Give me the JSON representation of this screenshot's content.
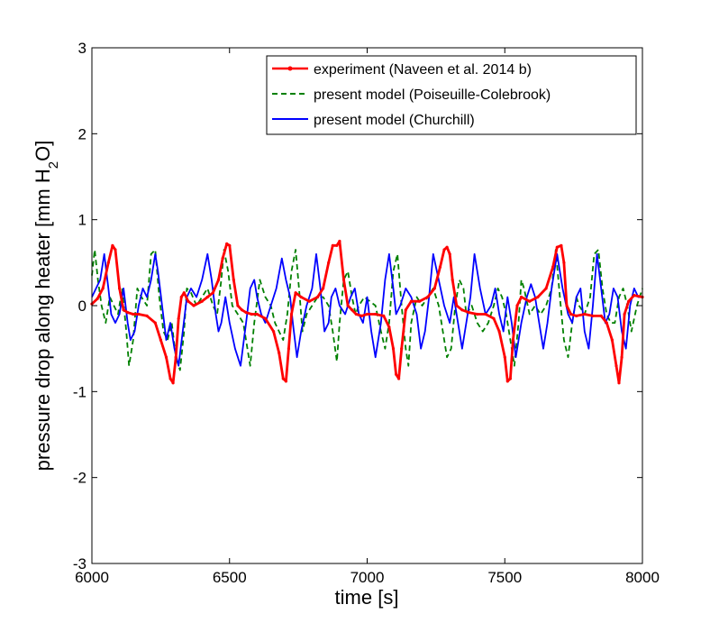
{
  "chart_data": {
    "type": "line",
    "xlabel": "time [s]",
    "ylabel_parts": [
      "pressure drop along heater [mm H",
      "2",
      "O]"
    ],
    "xlim": [
      6000,
      8000
    ],
    "ylim": [
      -3,
      3
    ],
    "xticks": [
      6000,
      6500,
      7000,
      7500,
      8000
    ],
    "yticks": [
      -3,
      -2,
      -1,
      0,
      1,
      2,
      3
    ],
    "grid": false,
    "legend_position": "top-right",
    "series": [
      {
        "name": "experiment (Naveen et al. 2014 b)",
        "color": "#ff0000",
        "style": "solid-dots",
        "x": [
          6000,
          6020,
          6040,
          6060,
          6075,
          6085,
          6100,
          6115,
          6130,
          6150,
          6170,
          6200,
          6230,
          6250,
          6270,
          6285,
          6295,
          6305,
          6315,
          6325,
          6335,
          6350,
          6370,
          6400,
          6420,
          6440,
          6460,
          6475,
          6490,
          6500,
          6515,
          6530,
          6545,
          6560,
          6580,
          6600,
          6630,
          6660,
          6680,
          6695,
          6705,
          6715,
          6725,
          6740,
          6760,
          6790,
          6820,
          6840,
          6860,
          6875,
          6890,
          6900,
          6915,
          6930,
          6945,
          6960,
          6980,
          7000,
          7030,
          7060,
          7080,
          7095,
          7105,
          7115,
          7125,
          7140,
          7160,
          7190,
          7220,
          7245,
          7265,
          7280,
          7290,
          7300,
          7310,
          7325,
          7345,
          7370,
          7400,
          7430,
          7460,
          7480,
          7500,
          7510,
          7520,
          7530,
          7545,
          7560,
          7590,
          7620,
          7650,
          7675,
          7690,
          7705,
          7715,
          7725,
          7740,
          7760,
          7790,
          7820,
          7850,
          7870,
          7890,
          7905,
          7915,
          7925,
          7935,
          7950,
          7970,
          8000
        ],
        "values": [
          0.02,
          0.08,
          0.2,
          0.5,
          0.7,
          0.65,
          0.2,
          -0.05,
          -0.08,
          -0.1,
          -0.1,
          -0.12,
          -0.2,
          -0.4,
          -0.6,
          -0.85,
          -0.9,
          -0.6,
          -0.15,
          0.1,
          0.15,
          0.05,
          0.0,
          0.05,
          0.1,
          0.15,
          0.3,
          0.55,
          0.72,
          0.7,
          0.3,
          0.0,
          -0.05,
          -0.08,
          -0.1,
          -0.1,
          -0.15,
          -0.3,
          -0.55,
          -0.85,
          -0.88,
          -0.5,
          -0.1,
          0.15,
          0.1,
          0.05,
          0.1,
          0.2,
          0.5,
          0.7,
          0.7,
          0.75,
          0.3,
          0.0,
          -0.05,
          -0.1,
          -0.12,
          -0.1,
          -0.1,
          -0.12,
          -0.25,
          -0.5,
          -0.8,
          -0.85,
          -0.5,
          -0.05,
          0.05,
          0.05,
          0.1,
          0.2,
          0.45,
          0.65,
          0.68,
          0.6,
          0.3,
          0.0,
          -0.05,
          -0.08,
          -0.1,
          -0.1,
          -0.15,
          -0.3,
          -0.6,
          -0.88,
          -0.85,
          -0.4,
          0.0,
          0.1,
          0.05,
          0.1,
          0.2,
          0.45,
          0.68,
          0.7,
          0.5,
          0.0,
          -0.1,
          -0.12,
          -0.1,
          -0.12,
          -0.12,
          -0.2,
          -0.4,
          -0.7,
          -0.9,
          -0.6,
          -0.1,
          0.05,
          0.12,
          0.1
        ]
      },
      {
        "name": "present model (Poiseuille-Colebrook)",
        "color": "#008000",
        "style": "dashed",
        "x": [
          6000,
          6010,
          6022,
          6035,
          6050,
          6065,
          6080,
          6095,
          6110,
          6125,
          6135,
          6150,
          6165,
          6180,
          6200,
          6215,
          6230,
          6245,
          6260,
          6275,
          6290,
          6305,
          6320,
          6335,
          6345,
          6360,
          6380,
          6400,
          6420,
          6440,
          6455,
          6470,
          6480,
          6495,
          6510,
          6530,
          6550,
          6565,
          6575,
          6590,
          6610,
          6630,
          6650,
          6665,
          6680,
          6695,
          6710,
          6725,
          6740,
          6755,
          6765,
          6780,
          6800,
          6820,
          6840,
          6860,
          6875,
          6890,
          6900,
          6915,
          6930,
          6945,
          6958,
          6970,
          6990,
          7010,
          7030,
          7050,
          7065,
          7080,
          7095,
          7110,
          7125,
          7140,
          7150,
          7160,
          7180,
          7200,
          7220,
          7240,
          7260,
          7275,
          7290,
          7305,
          7320,
          7335,
          7350,
          7360,
          7380,
          7400,
          7420,
          7440,
          7460,
          7475,
          7490,
          7505,
          7520,
          7535,
          7550,
          7560,
          7570,
          7590,
          7610,
          7630,
          7650,
          7670,
          7685,
          7700,
          7715,
          7730,
          7745,
          7760,
          7770,
          7790,
          7810,
          7825,
          7840,
          7855,
          7870,
          7885,
          7900,
          7915,
          7930,
          7945,
          7960,
          7980,
          8000
        ],
        "values": [
          0.35,
          0.65,
          0.3,
          0.0,
          -0.2,
          0.1,
          0.0,
          -0.1,
          0.2,
          -0.3,
          -0.7,
          -0.4,
          0.2,
          0.1,
          0.0,
          0.6,
          0.65,
          0.1,
          -0.3,
          -0.4,
          -0.2,
          -0.6,
          -0.75,
          -0.3,
          0.2,
          0.15,
          0.0,
          0.1,
          0.2,
          0.0,
          -0.1,
          0.3,
          0.65,
          0.4,
          0.0,
          -0.1,
          -0.2,
          -0.5,
          -0.7,
          -0.2,
          0.3,
          0.1,
          0.0,
          -0.2,
          -0.3,
          -0.4,
          -0.1,
          0.4,
          0.65,
          0.1,
          -0.3,
          -0.1,
          0.0,
          0.1,
          0.1,
          0.0,
          -0.3,
          -0.65,
          -0.2,
          0.3,
          0.4,
          0.1,
          -0.1,
          0.0,
          0.1,
          0.05,
          0.0,
          -0.3,
          -0.5,
          -0.2,
          0.4,
          0.6,
          0.0,
          -0.5,
          -0.7,
          -0.2,
          0.1,
          0.0,
          0.1,
          0.2,
          0.0,
          -0.3,
          -0.6,
          -0.5,
          0.0,
          0.3,
          0.2,
          -0.1,
          0.0,
          -0.2,
          -0.3,
          -0.2,
          0.0,
          0.2,
          0.1,
          -0.1,
          -0.4,
          -0.7,
          -0.2,
          0.3,
          0.2,
          -0.1,
          0.0,
          -0.1,
          0.0,
          0.2,
          0.65,
          0.1,
          -0.4,
          -0.6,
          -0.2,
          0.1,
          0.0,
          -0.1,
          0.1,
          0.6,
          0.65,
          0.2,
          -0.1,
          -0.2,
          -0.2,
          0.1,
          0.2,
          0.0,
          -0.3,
          0.0,
          0.2
        ]
      },
      {
        "name": "present model (Churchill)",
        "color": "#0000ff",
        "style": "solid",
        "x": [
          6000,
          6015,
          6030,
          6045,
          6060,
          6070,
          6085,
          6100,
          6115,
          6130,
          6140,
          6155,
          6170,
          6185,
          6200,
          6215,
          6230,
          6240,
          6255,
          6270,
          6285,
          6300,
          6315,
          6330,
          6345,
          6360,
          6380,
          6400,
          6420,
          6435,
          6450,
          6460,
          6470,
          6485,
          6500,
          6520,
          6540,
          6560,
          6575,
          6590,
          6600,
          6615,
          6630,
          6650,
          6670,
          6690,
          6705,
          6720,
          6730,
          6745,
          6760,
          6780,
          6800,
          6815,
          6830,
          6845,
          6860,
          6870,
          6885,
          6900,
          6920,
          6940,
          6955,
          6970,
          6985,
          7000,
          7015,
          7030,
          7050,
          7065,
          7080,
          7095,
          7105,
          7120,
          7140,
          7160,
          7180,
          7195,
          7210,
          7225,
          7240,
          7260,
          7280,
          7300,
          7315,
          7330,
          7345,
          7360,
          7375,
          7390,
          7410,
          7430,
          7450,
          7465,
          7480,
          7495,
          7510,
          7525,
          7540,
          7560,
          7580,
          7595,
          7610,
          7625,
          7640,
          7655,
          7670,
          7690,
          7710,
          7730,
          7745,
          7760,
          7775,
          7790,
          7805,
          7820,
          7835,
          7850,
          7865,
          7880,
          7895,
          7910,
          7925,
          7940,
          7955,
          7970,
          7985,
          8000
        ],
        "values": [
          0.1,
          0.2,
          0.3,
          0.6,
          0.2,
          -0.1,
          -0.2,
          -0.1,
          0.2,
          -0.2,
          -0.4,
          -0.3,
          0.0,
          0.2,
          0.1,
          0.3,
          0.6,
          0.4,
          0.0,
          -0.4,
          -0.2,
          -0.5,
          -0.7,
          -0.3,
          0.1,
          0.2,
          0.1,
          0.3,
          0.6,
          0.3,
          -0.1,
          -0.3,
          -0.2,
          0.1,
          -0.2,
          -0.5,
          -0.7,
          -0.2,
          0.2,
          0.3,
          0.1,
          -0.1,
          -0.2,
          0.0,
          0.2,
          0.55,
          0.3,
          0.1,
          -0.2,
          -0.6,
          -0.3,
          0.0,
          0.2,
          0.6,
          0.2,
          -0.3,
          -0.2,
          0.1,
          0.2,
          0.0,
          -0.1,
          0.1,
          0.2,
          -0.1,
          -0.2,
          0.1,
          -0.3,
          -0.6,
          -0.2,
          0.3,
          0.6,
          0.2,
          -0.1,
          0.0,
          0.2,
          0.1,
          -0.1,
          -0.5,
          -0.3,
          0.1,
          0.6,
          0.3,
          0.0,
          -0.2,
          0.1,
          -0.2,
          -0.5,
          -0.2,
          0.1,
          0.6,
          0.2,
          -0.1,
          0.0,
          0.2,
          -0.1,
          -0.3,
          0.1,
          -0.2,
          -0.6,
          -0.2,
          0.1,
          0.25,
          0.1,
          -0.2,
          -0.5,
          -0.2,
          0.2,
          0.6,
          0.2,
          -0.1,
          -0.2,
          0.1,
          0.2,
          -0.3,
          -0.5,
          0.0,
          0.6,
          0.2,
          -0.2,
          -0.1,
          0.2,
          0.1,
          -0.3,
          -0.5,
          0.0,
          0.2,
          0.1,
          0.1
        ]
      }
    ]
  }
}
